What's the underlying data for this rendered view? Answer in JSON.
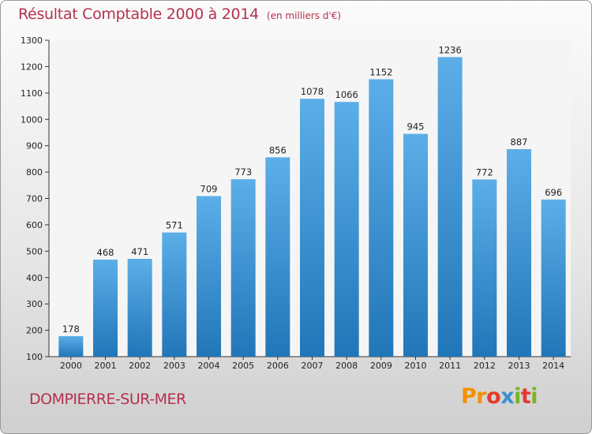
{
  "header": {
    "title": "Résultat Comptable 2000 à 2014",
    "subtitle": "(en milliers d'€)"
  },
  "footer": {
    "commune": "DOMPIERRE-SUR-MER",
    "logo": "Proxiti",
    "logo_colors": [
      "#f39200",
      "#f39200",
      "#e53b2c",
      "#3a8fd1",
      "#7ab51d",
      "#e53b2c",
      "#7ab51d"
    ]
  },
  "colors": {
    "bar_top": "#5caee8",
    "bar_bottom": "#2176b8",
    "title": "#b5314e",
    "plot_bg": "#f5f5f5",
    "axis": "#333333"
  },
  "chart_data": {
    "type": "bar",
    "title": "Résultat Comptable 2000 à 2014",
    "subtitle": "(en milliers d'€)",
    "xlabel": "",
    "ylabel": "",
    "categories": [
      "2000",
      "2001",
      "2002",
      "2003",
      "2004",
      "2005",
      "2006",
      "2007",
      "2008",
      "2009",
      "2010",
      "2011",
      "2012",
      "2013",
      "2014"
    ],
    "values": [
      178,
      468,
      471,
      571,
      709,
      773,
      856,
      1078,
      1066,
      1152,
      945,
      1236,
      772,
      887,
      696
    ],
    "ylim": [
      100,
      1300
    ],
    "yticks": [
      100,
      200,
      300,
      400,
      500,
      600,
      700,
      800,
      900,
      1000,
      1100,
      1200,
      1300
    ],
    "grid": false,
    "data_labels": true
  }
}
